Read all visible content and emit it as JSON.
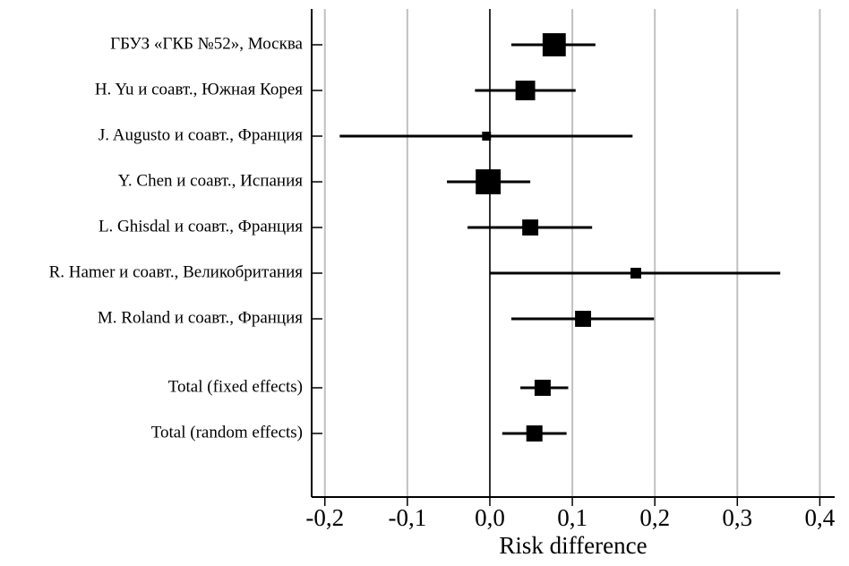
{
  "chart_data": {
    "type": "forest",
    "xlabel": "Risk difference",
    "categories": [
      "ГБУЗ «ГКБ №52», Москва",
      "H. Yu и соавт., Южная Корея",
      "J. Augusto и соавт., Франция",
      "Y. Chen и соавт., Испания",
      "L. Ghisdal и соавт., Франция",
      "R. Hamer и соавт., Великобритания",
      "M. Roland и соавт., Франция",
      "Total (fixed effects)",
      "Total (random effects)"
    ],
    "values": [
      0.078,
      0.043,
      -0.004,
      -0.002,
      0.049,
      0.177,
      0.113,
      0.064,
      0.054
    ],
    "ci_lower": [
      0.026,
      -0.018,
      -0.182,
      -0.052,
      -0.027,
      0.0,
      0.026,
      0.037,
      0.015
    ],
    "ci_upper": [
      0.128,
      0.104,
      0.173,
      0.049,
      0.124,
      0.352,
      0.199,
      0.095,
      0.093
    ],
    "weights": [
      23.8,
      17.1,
      3.5,
      27.6,
      11.4,
      5.1,
      11.4,
      null,
      null
    ],
    "color": "#000000",
    "reference_line": 0,
    "xlim": [
      -0.216,
      0.418
    ],
    "xticks": [
      {
        "value": -0.2,
        "label": "-0,2"
      },
      {
        "value": -0.1,
        "label": "-0,1"
      },
      {
        "value": 0,
        "label": "0,0"
      },
      {
        "value": 0.1,
        "label": "0,1"
      },
      {
        "value": 0.2,
        "label": "0,2"
      },
      {
        "value": 0.3,
        "label": "0,3"
      },
      {
        "value": 0.4,
        "label": "0,4"
      }
    ],
    "grid": true
  }
}
